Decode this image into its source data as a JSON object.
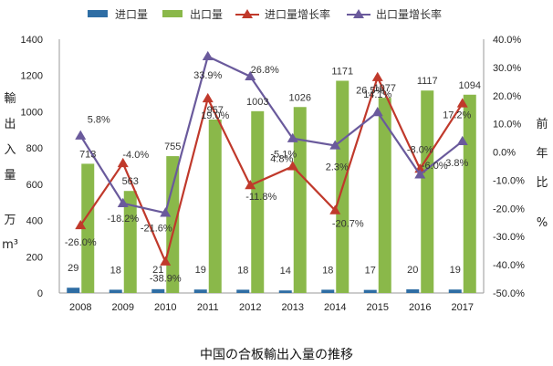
{
  "caption": "中国の合板輸出入量の推移",
  "chart_data": {
    "type": "bar",
    "categories": [
      "2008",
      "2009",
      "2010",
      "2011",
      "2012",
      "2013",
      "2014",
      "2015",
      "2016",
      "2017"
    ],
    "series": [
      {
        "name": "进口量",
        "kind": "bar",
        "axis": "left",
        "color": "#2e6da4",
        "values": [
          29,
          18,
          21,
          19,
          18,
          14,
          18,
          17,
          20,
          19
        ],
        "labels": [
          "29",
          "18",
          "21",
          "19",
          "18",
          "14",
          "18",
          "17",
          "20",
          "19"
        ]
      },
      {
        "name": "出口量",
        "kind": "bar",
        "axis": "left",
        "color": "#8ab84a",
        "values": [
          713,
          563,
          755,
          957,
          1003,
          1026,
          1171,
          1077,
          1117,
          1094
        ],
        "labels": [
          "713",
          "563",
          "755",
          "957",
          "1003",
          "1026",
          "1171",
          "1077",
          "1117",
          "1094"
        ]
      },
      {
        "name": "进口量增长率",
        "kind": "line",
        "axis": "right",
        "color": "#c0392b",
        "marker": "triangle",
        "values": [
          -26.0,
          -4.0,
          -38.9,
          19.0,
          -11.8,
          -5.1,
          -20.7,
          26.5,
          -6.0,
          17.2
        ],
        "labels": [
          "-26.0%",
          "-4.0%",
          "-38.9%",
          "19.0%",
          "-11.8%",
          "-5.1%",
          "-20.7%",
          "26.5%",
          "-6.0%",
          "17.2%"
        ]
      },
      {
        "name": "出口量增长率",
        "kind": "line",
        "axis": "right",
        "color": "#6a5a9c",
        "marker": "triangle",
        "values": [
          5.8,
          -18.2,
          -21.6,
          33.9,
          26.8,
          4.8,
          2.3,
          14.1,
          -8.0,
          3.8
        ],
        "labels": [
          "5.8%",
          "-18.2%",
          "-21.6%",
          "33.9%",
          "26.8%",
          "4.8%",
          "2.3%",
          "14.1%",
          "-8.0%",
          "3.8%"
        ]
      }
    ],
    "y_left": {
      "label": [
        "輸",
        "出",
        "入",
        "量",
        "万",
        "m³"
      ],
      "range": [
        0,
        1400
      ],
      "ticks": [
        "0",
        "200",
        "400",
        "600",
        "800",
        "1000",
        "1200",
        "1400"
      ]
    },
    "y_right": {
      "label": [
        "前",
        "年",
        "比",
        "%"
      ],
      "range": [
        -50,
        40
      ],
      "ticks": [
        "-50.0%",
        "-40.0%",
        "-30.0%",
        "-20.0%",
        "-10.0%",
        "0.0%",
        "10.0%",
        "20.0%",
        "30.0%",
        "40.0%"
      ]
    },
    "legend": {
      "placement": "top"
    },
    "grid": false
  }
}
